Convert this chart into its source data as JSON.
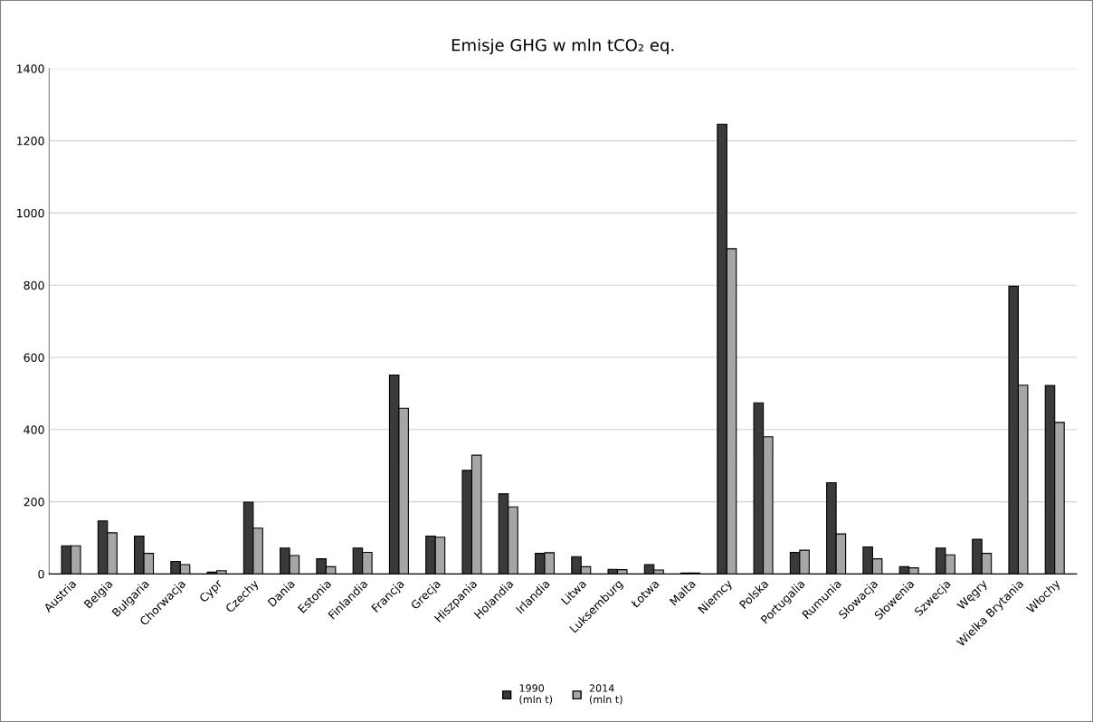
{
  "chart_data": {
    "type": "bar",
    "title": "Emisje GHG w mln tCO₂ eq.",
    "categories": [
      "Austria",
      "Belgia",
      "Bułgaria",
      "Chorwacja",
      "Cypr",
      "Czechy",
      "Dania",
      "Estonia",
      "Finlandia",
      "Francja",
      "Grecja",
      "Hiszpania",
      "Holandia",
      "Irlandia",
      "Litwa",
      "Luksemburg",
      "Łotwa",
      "Malta",
      "Niemcy",
      "Polska",
      "Portugalia",
      "Rumunia",
      "Słowacja",
      "Słowenia",
      "Szwecja",
      "Węgry",
      "Wielka Brytania",
      "Włochy"
    ],
    "series": [
      {
        "name": "1990\n(mln t)",
        "color": "#3a3a3a",
        "values": [
          78,
          147,
          105,
          35,
          5,
          199,
          72,
          42,
          72,
          551,
          105,
          287,
          222,
          57,
          48,
          13,
          26,
          3,
          1246,
          474,
          60,
          253,
          75,
          20,
          72,
          96,
          797,
          522
        ]
      },
      {
        "name": "2014\n(mln t)",
        "color": "#a6a6a6",
        "values": [
          78,
          114,
          57,
          26,
          9,
          127,
          51,
          20,
          60,
          459,
          102,
          329,
          186,
          59,
          20,
          12,
          11,
          3,
          901,
          380,
          66,
          111,
          42,
          17,
          53,
          57,
          523,
          420
        ]
      }
    ],
    "ylim": [
      0,
      1400
    ],
    "yticks": [
      0,
      200,
      400,
      600,
      800,
      1000,
      1200,
      1400
    ],
    "grid": "y",
    "legend": "bottom"
  }
}
